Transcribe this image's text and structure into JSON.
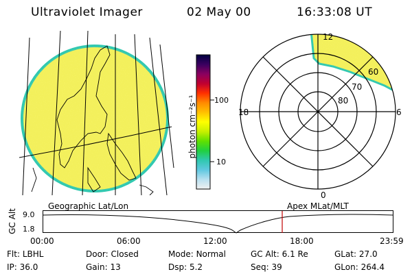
{
  "header": {
    "instrument": "Ultraviolet Imager",
    "date": "02 May 00",
    "time": "16:33:08 UT"
  },
  "colorbar": {
    "unit": "photon cm⁻²s⁻¹",
    "ticks": [
      "100",
      "10"
    ],
    "colors": [
      "#000040",
      "#3a0060",
      "#8a0060",
      "#c00030",
      "#ff3000",
      "#ff8a00",
      "#ffc000",
      "#ffff00",
      "#c8f000",
      "#60e000",
      "#20d040",
      "#30c8b0",
      "#60c8e0",
      "#b8e0f0",
      "#f0f0f0"
    ]
  },
  "earth": {
    "fill": "#f3f05a",
    "edge": "#30c8b0"
  },
  "polar": {
    "lat_labels": [
      "80",
      "70",
      "60"
    ],
    "mlt_labels": {
      "top": "12",
      "left": "18",
      "right": "6",
      "bottom": "0"
    }
  },
  "timeline": {
    "left_title": "Geographic Lat/Lon",
    "right_title": "Apex MLat/MLT",
    "axis_label": "GC Alt",
    "y_ticks": [
      "9.0",
      "1.8"
    ],
    "x_ticks": [
      "00:00",
      "06:00",
      "12:00",
      "18:00",
      "23:59"
    ],
    "marker_color": "#c00000"
  },
  "info": {
    "row1": [
      {
        "label": "Flt:",
        "value": "LBHL"
      },
      {
        "label": "Door:",
        "value": "Closed"
      },
      {
        "label": "Mode:",
        "value": "Normal"
      },
      {
        "label": "GC Alt:",
        "value": "6.1 Re"
      },
      {
        "label": "GLat:",
        "value": "27.0"
      }
    ],
    "row2": [
      {
        "label": "IP:",
        "value": "36.0"
      },
      {
        "label": "Gain:",
        "value": "13"
      },
      {
        "label": "Dsp:",
        "value": "5.2"
      },
      {
        "label": "Seq:",
        "value": "39"
      },
      {
        "label": "GLon:",
        "value": "264.4"
      }
    ]
  }
}
